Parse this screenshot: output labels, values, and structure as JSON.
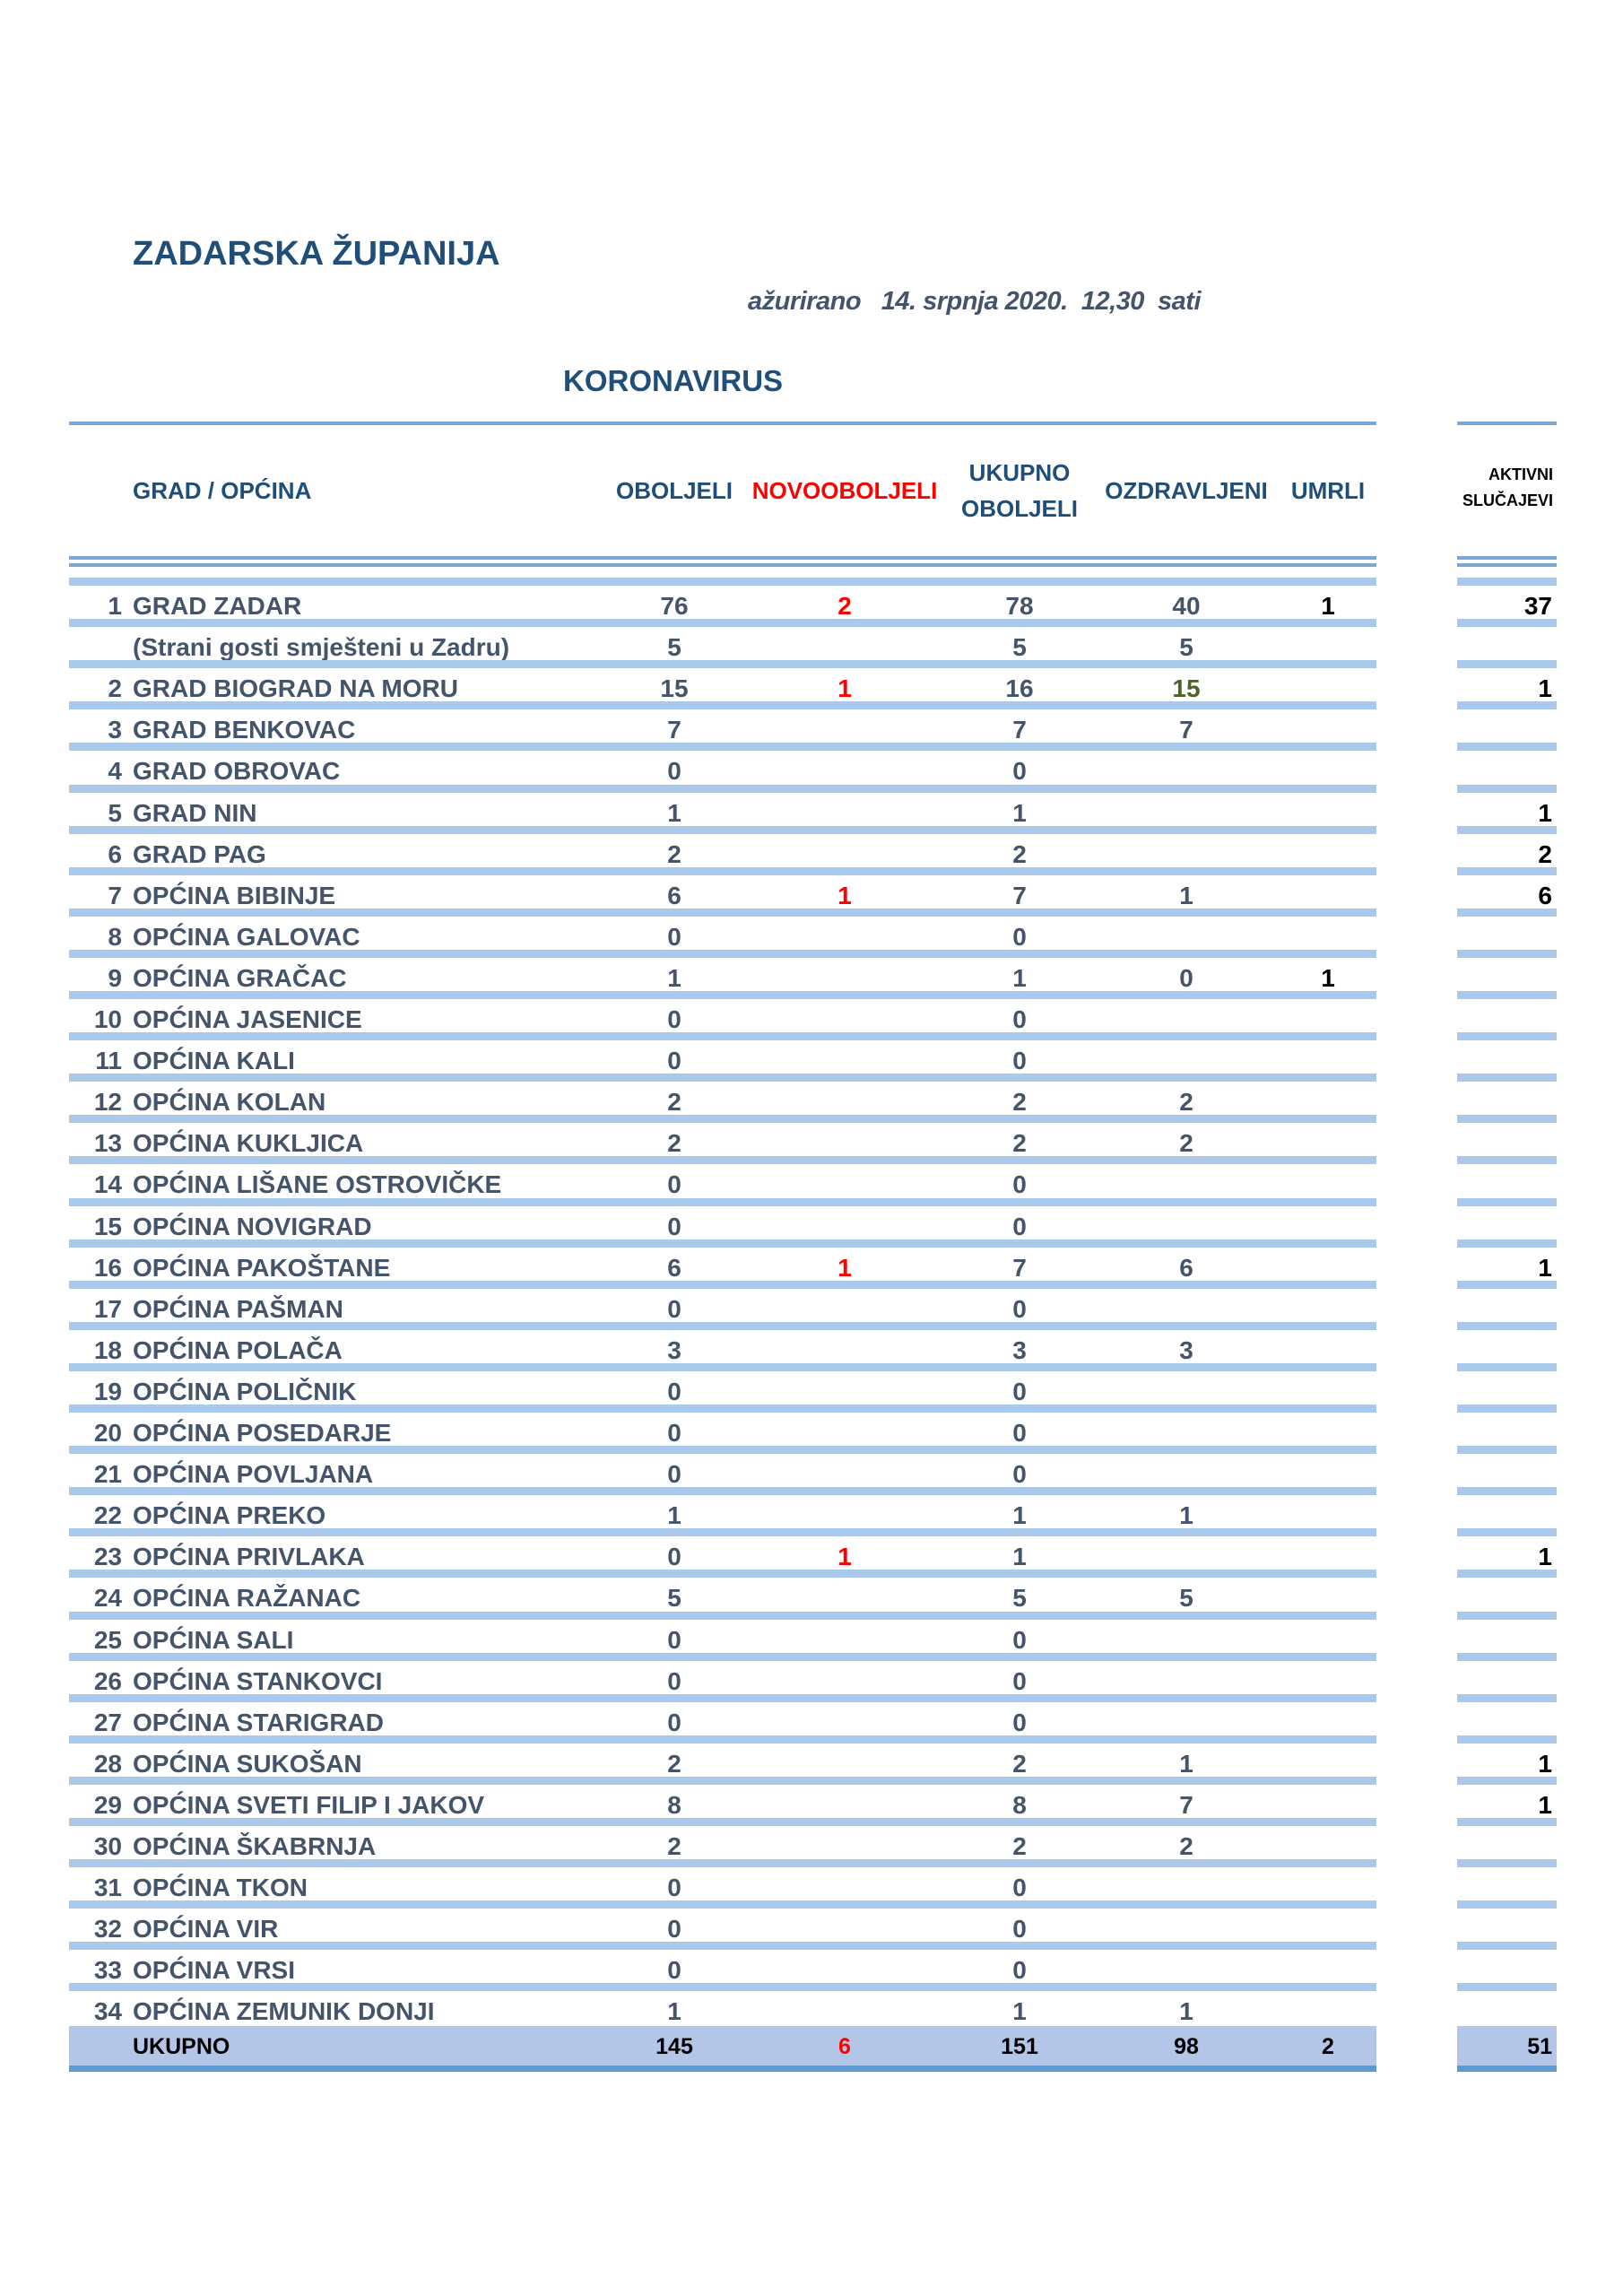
{
  "header": {
    "title": "ZADARSKA ŽUPANIJA",
    "updated": "ažurirano   14. srpnja 2020.  12,30  sati",
    "subtitle": "KORONAVIRUS"
  },
  "columns": {
    "name": "GRAD / OPĆINA",
    "oboljeli": "OBOLJELI",
    "novooboljeli": "NOVOOBOLJELI",
    "ukupno_1": "UKUPNO",
    "ukupno_2": "OBOLJELI",
    "ozdravljeni": "OZDRAVLJENI",
    "umrli": "UMRLI",
    "aktivni_1": "AKTIVNI",
    "aktivni_2": "SLUČAJEVI"
  },
  "colors": {
    "title": "#1f4e79",
    "text": "#44546a",
    "new": "#ff0000",
    "recovered_highlight": "#4f6228",
    "row_bar": "#a9c8ea",
    "total_bg": "#b4c6e7",
    "total_bar": "#5b9bd5"
  },
  "rows": [
    {
      "no": "1",
      "name": "GRAD ZADAR",
      "oboljeli": "76",
      "novo": "2",
      "ukupno": "78",
      "ozdravljeni": "40",
      "umrli": "1",
      "aktivni": "37"
    },
    {
      "no": "",
      "name": "(Strani gosti smješteni u Zadru)",
      "oboljeli": "5",
      "novo": "",
      "ukupno": "5",
      "ozdravljeni": "5",
      "umrli": "",
      "aktivni": ""
    },
    {
      "no": "2",
      "name": "GRAD BIOGRAD NA MORU",
      "oboljeli": "15",
      "novo": "1",
      "ukupno": "16",
      "ozdravljeni": "15",
      "ozdravljeni_highlight": true,
      "umrli": "",
      "aktivni": "1"
    },
    {
      "no": "3",
      "name": "GRAD BENKOVAC",
      "oboljeli": "7",
      "novo": "",
      "ukupno": "7",
      "ozdravljeni": "7",
      "umrli": "",
      "aktivni": ""
    },
    {
      "no": "4",
      "name": "GRAD OBROVAC",
      "oboljeli": "0",
      "novo": "",
      "ukupno": "0",
      "ozdravljeni": "",
      "umrli": "",
      "aktivni": ""
    },
    {
      "no": "5",
      "name": "GRAD NIN",
      "oboljeli": "1",
      "novo": "",
      "ukupno": "1",
      "ozdravljeni": "",
      "umrli": "",
      "aktivni": "1"
    },
    {
      "no": "6",
      "name": "GRAD PAG",
      "oboljeli": "2",
      "novo": "",
      "ukupno": "2",
      "ozdravljeni": "",
      "umrli": "",
      "aktivni": "2"
    },
    {
      "no": "7",
      "name": "OPĆINA BIBINJE",
      "oboljeli": "6",
      "novo": "1",
      "ukupno": "7",
      "ozdravljeni": "1",
      "umrli": "",
      "aktivni": "6"
    },
    {
      "no": "8",
      "name": "OPĆINA GALOVAC",
      "oboljeli": "0",
      "novo": "",
      "ukupno": "0",
      "ozdravljeni": "",
      "umrli": "",
      "aktivni": ""
    },
    {
      "no": "9",
      "name": "OPĆINA GRAČAC",
      "oboljeli": "1",
      "novo": "",
      "ukupno": "1",
      "ozdravljeni": "0",
      "umrli": "1",
      "aktivni": ""
    },
    {
      "no": "10",
      "name": "OPĆINA JASENICE",
      "oboljeli": "0",
      "novo": "",
      "ukupno": "0",
      "ozdravljeni": "",
      "umrli": "",
      "aktivni": ""
    },
    {
      "no": "11",
      "name": "OPĆINA KALI",
      "oboljeli": "0",
      "novo": "",
      "ukupno": "0",
      "ozdravljeni": "",
      "umrli": "",
      "aktivni": ""
    },
    {
      "no": "12",
      "name": "OPĆINA KOLAN",
      "oboljeli": "2",
      "novo": "",
      "ukupno": "2",
      "ozdravljeni": "2",
      "umrli": "",
      "aktivni": ""
    },
    {
      "no": "13",
      "name": "OPĆINA KUKLJICA",
      "oboljeli": "2",
      "novo": "",
      "ukupno": "2",
      "ozdravljeni": "2",
      "umrli": "",
      "aktivni": ""
    },
    {
      "no": "14",
      "name": "OPĆINA LIŠANE OSTROVIČKE",
      "oboljeli": "0",
      "novo": "",
      "ukupno": "0",
      "ozdravljeni": "",
      "umrli": "",
      "aktivni": ""
    },
    {
      "no": "15",
      "name": "OPĆINA NOVIGRAD",
      "oboljeli": "0",
      "novo": "",
      "ukupno": "0",
      "ozdravljeni": "",
      "umrli": "",
      "aktivni": ""
    },
    {
      "no": "16",
      "name": "OPĆINA PAKOŠTANE",
      "oboljeli": "6",
      "novo": "1",
      "ukupno": "7",
      "ozdravljeni": "6",
      "umrli": "",
      "aktivni": "1"
    },
    {
      "no": "17",
      "name": "OPĆINA PAŠMAN",
      "oboljeli": "0",
      "novo": "",
      "ukupno": "0",
      "ozdravljeni": "",
      "umrli": "",
      "aktivni": ""
    },
    {
      "no": "18",
      "name": "OPĆINA POLAČA",
      "oboljeli": "3",
      "novo": "",
      "ukupno": "3",
      "ozdravljeni": "3",
      "umrli": "",
      "aktivni": ""
    },
    {
      "no": "19",
      "name": "OPĆINA POLIČNIK",
      "oboljeli": "0",
      "novo": "",
      "ukupno": "0",
      "ozdravljeni": "",
      "umrli": "",
      "aktivni": ""
    },
    {
      "no": "20",
      "name": "OPĆINA POSEDARJE",
      "oboljeli": "0",
      "novo": "",
      "ukupno": "0",
      "ozdravljeni": "",
      "umrli": "",
      "aktivni": ""
    },
    {
      "no": "21",
      "name": "OPĆINA POVLJANA",
      "oboljeli": "0",
      "novo": "",
      "ukupno": "0",
      "ozdravljeni": "",
      "umrli": "",
      "aktivni": ""
    },
    {
      "no": "22",
      "name": "OPĆINA PREKO",
      "oboljeli": "1",
      "novo": "",
      "ukupno": "1",
      "ozdravljeni": "1",
      "umrli": "",
      "aktivni": ""
    },
    {
      "no": "23",
      "name": "OPĆINA PRIVLAKA",
      "oboljeli": "0",
      "novo": "1",
      "ukupno": "1",
      "ozdravljeni": "",
      "umrli": "",
      "aktivni": "1"
    },
    {
      "no": "24",
      "name": "OPĆINA RAŽANAC",
      "oboljeli": "5",
      "novo": "",
      "ukupno": "5",
      "ozdravljeni": "5",
      "umrli": "",
      "aktivni": ""
    },
    {
      "no": "25",
      "name": "OPĆINA SALI",
      "oboljeli": "0",
      "novo": "",
      "ukupno": "0",
      "ozdravljeni": "",
      "umrli": "",
      "aktivni": ""
    },
    {
      "no": "26",
      "name": "OPĆINA STANKOVCI",
      "oboljeli": "0",
      "novo": "",
      "ukupno": "0",
      "ozdravljeni": "",
      "umrli": "",
      "aktivni": ""
    },
    {
      "no": "27",
      "name": "OPĆINA STARIGRAD",
      "oboljeli": "0",
      "novo": "",
      "ukupno": "0",
      "ozdravljeni": "",
      "umrli": "",
      "aktivni": ""
    },
    {
      "no": "28",
      "name": "OPĆINA SUKOŠAN",
      "oboljeli": "2",
      "novo": "",
      "ukupno": "2",
      "ozdravljeni": "1",
      "umrli": "",
      "aktivni": "1"
    },
    {
      "no": "29",
      "name": "OPĆINA SVETI FILIP I JAKOV",
      "oboljeli": "8",
      "novo": "",
      "ukupno": "8",
      "ozdravljeni": "7",
      "umrli": "",
      "aktivni": "1"
    },
    {
      "no": "30",
      "name": "OPĆINA ŠKABRNJA",
      "oboljeli": "2",
      "novo": "",
      "ukupno": "2",
      "ozdravljeni": "2",
      "umrli": "",
      "aktivni": ""
    },
    {
      "no": "31",
      "name": "OPĆINA TKON",
      "oboljeli": "0",
      "novo": "",
      "ukupno": "0",
      "ozdravljeni": "",
      "umrli": "",
      "aktivni": ""
    },
    {
      "no": "32",
      "name": "OPĆINA VIR",
      "oboljeli": "0",
      "novo": "",
      "ukupno": "0",
      "ozdravljeni": "",
      "umrli": "",
      "aktivni": ""
    },
    {
      "no": "33",
      "name": "OPĆINA VRSI",
      "oboljeli": "0",
      "novo": "",
      "ukupno": "0",
      "ozdravljeni": "",
      "umrli": "",
      "aktivni": ""
    },
    {
      "no": "34",
      "name": "OPĆINA ZEMUNIK DONJI",
      "oboljeli": "1",
      "novo": "",
      "ukupno": "1",
      "ozdravljeni": "1",
      "umrli": "",
      "aktivni": ""
    }
  ],
  "total": {
    "name": "UKUPNO",
    "oboljeli": "145",
    "novo": "6",
    "ukupno": "151",
    "ozdravljeni": "98",
    "umrli": "2",
    "aktivni": "51"
  }
}
